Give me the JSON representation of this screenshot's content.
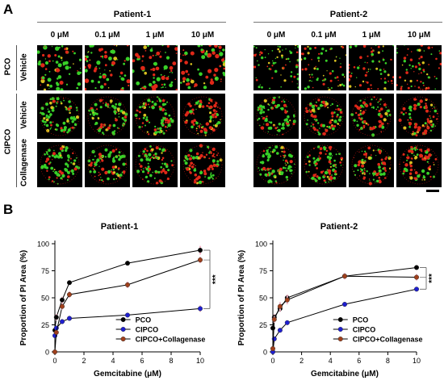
{
  "panel_a": {
    "letter": "A",
    "patients": [
      "Patient-1",
      "Patient-2"
    ],
    "concentrations": [
      "0 μM",
      "0.1 μM",
      "1 μM",
      "10 μM"
    ],
    "group_labels": {
      "pco": "PCO",
      "cipco": "CIPCO"
    },
    "treatment_labels": [
      "Vehicle",
      "Vehicle",
      "Collagenase"
    ]
  },
  "panel_b": {
    "letter": "B"
  },
  "colors": {
    "pco": "#000000",
    "cipco": "#1f1fd0",
    "cipco_collagenase": "#a0401c",
    "error": "#f4b8c8"
  },
  "chart_data": [
    {
      "type": "line",
      "title": "Patient-1",
      "xlabel": "Gemcitabine (μM)",
      "ylabel": "Proportion of PI Area (%)",
      "xlim": [
        0,
        10
      ],
      "ylim": [
        0,
        100
      ],
      "xticks": [
        "0",
        "2",
        "4",
        "6",
        "8",
        "10"
      ],
      "yticks": [
        "0",
        "25",
        "50",
        "75",
        "100"
      ],
      "x": [
        0,
        0.1,
        0.5,
        1,
        5,
        10
      ],
      "legend_position": "bottom-right",
      "significance": "***",
      "series": [
        {
          "name": "PCO",
          "values": [
            20,
            32,
            48,
            64,
            82,
            94
          ],
          "color": "#000000"
        },
        {
          "name": "CIPCO",
          "values": [
            15,
            22,
            28,
            31,
            34,
            40
          ],
          "color": "#1f1fd0"
        },
        {
          "name": "CIPCO+Collagenase",
          "values": [
            0,
            18,
            42,
            53,
            62,
            85
          ],
          "color": "#a0401c"
        }
      ]
    },
    {
      "type": "line",
      "title": "Patient-2",
      "xlabel": "Gemcitabine (μM)",
      "ylabel": "Proportion of PI Area (%)",
      "xlim": [
        0,
        10
      ],
      "ylim": [
        0,
        100
      ],
      "xticks": [
        "0",
        "2",
        "4",
        "6",
        "8",
        "10"
      ],
      "yticks": [
        "0",
        "25",
        "50",
        "75",
        "100"
      ],
      "x": [
        0,
        0.1,
        0.5,
        1,
        5,
        10
      ],
      "legend_position": "bottom-right",
      "significance": "***",
      "series": [
        {
          "name": "PCO",
          "values": [
            22,
            32,
            40,
            50,
            70,
            78
          ],
          "color": "#000000"
        },
        {
          "name": "CIPCO",
          "values": [
            0,
            12,
            20,
            27,
            44,
            58
          ],
          "color": "#1f1fd0"
        },
        {
          "name": "CIPCO+Collagenase",
          "values": [
            3,
            30,
            42,
            48,
            70,
            69
          ],
          "color": "#a0401c"
        }
      ]
    }
  ]
}
